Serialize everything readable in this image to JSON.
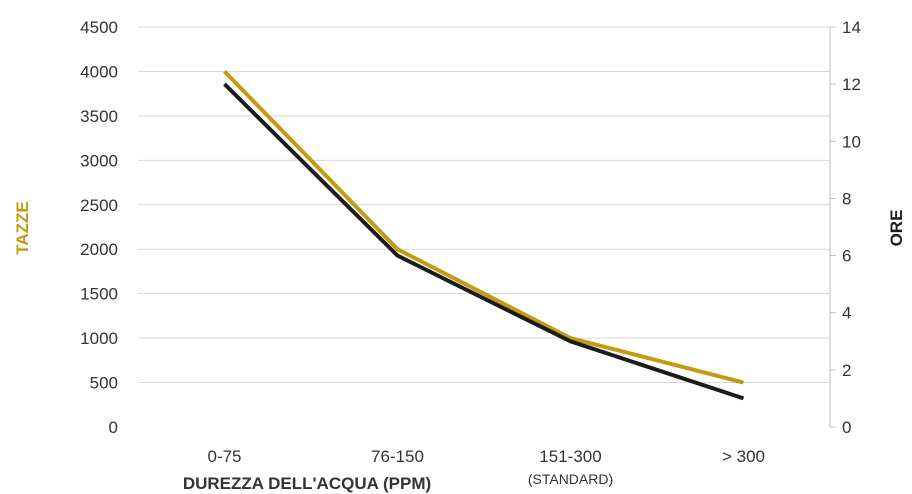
{
  "chart_data": {
    "type": "line",
    "categories": [
      "0-75",
      "76-150",
      "151-300",
      "> 300"
    ],
    "category_sublabels": [
      "",
      "",
      "(STANDARD)",
      ""
    ],
    "xlabel": "DUREZZA DELL'ACQUA (PPM)",
    "ylabel": "TAZZE",
    "y2label": "ORE",
    "ylim": [
      0,
      4500
    ],
    "yticks": [
      0,
      500,
      1000,
      1500,
      2000,
      2500,
      3000,
      3500,
      4000,
      4500
    ],
    "y2lim": [
      0,
      14
    ],
    "y2ticks": [
      0,
      2,
      4,
      6,
      8,
      10,
      12,
      14
    ],
    "grid": true,
    "series": [
      {
        "axis": "left",
        "color": "#c49a10",
        "values": [
          4000,
          2000,
          1000,
          500
        ]
      },
      {
        "axis": "right",
        "color": "#1c1c1c",
        "values": [
          12,
          6,
          3,
          1
        ]
      }
    ],
    "colors": {
      "ylabel": "#c49a10",
      "y2label": "#1c1c1c",
      "grid": "#d9d9d9",
      "axis": "#bfbfbf"
    }
  }
}
